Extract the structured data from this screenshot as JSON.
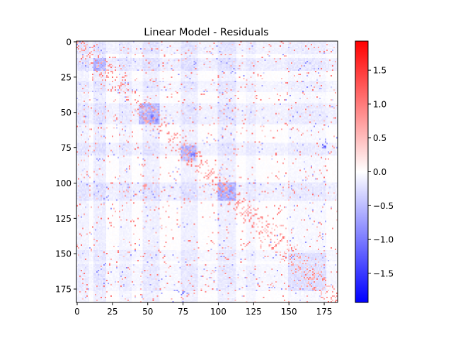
{
  "chart_data": {
    "type": "heatmap",
    "title": "Linear Model - Residuals",
    "xlabel": "",
    "ylabel": "",
    "matrix_size": 185,
    "xlim": [
      0,
      185
    ],
    "ylim": [
      185,
      0
    ],
    "x_ticks": [
      0,
      25,
      50,
      75,
      100,
      125,
      150,
      175
    ],
    "y_ticks": [
      0,
      25,
      50,
      75,
      100,
      125,
      150,
      175
    ],
    "colormap": "bwr",
    "color_range": [
      -1.93,
      1.93
    ],
    "colorbar_ticks": [
      1.5,
      1.0,
      0.5,
      0.0,
      -0.5,
      -1.0,
      -1.5
    ],
    "colorbar_tick_labels": [
      "1.5",
      "1.0",
      "0.5",
      "0.0",
      "−0.5",
      "−1.0",
      "−1.5"
    ],
    "grid": false,
    "value_description": "mostly near-zero residuals; scattered positive (red) entries along and off the diagonal; blocks of negative (blue) residuals near rows/cols 15-20, 45-58, 75-85, 100-110",
    "bands": {
      "rows_negative": [
        [
          0,
          8,
          -0.18
        ],
        [
          12,
          20,
          -0.25
        ],
        [
          28,
          35,
          -0.15
        ],
        [
          44,
          58,
          -0.2
        ],
        [
          72,
          80,
          -0.2
        ],
        [
          100,
          112,
          -0.22
        ],
        [
          148,
          155,
          -0.12
        ],
        [
          158,
          176,
          -0.12
        ]
      ],
      "cols_negative": [
        [
          0,
          8,
          -0.18
        ],
        [
          12,
          20,
          -0.25
        ],
        [
          30,
          38,
          -0.15
        ],
        [
          47,
          58,
          -0.22
        ],
        [
          74,
          85,
          -0.22
        ],
        [
          100,
          112,
          -0.22
        ],
        [
          120,
          126,
          -0.12
        ],
        [
          150,
          176,
          -0.1
        ]
      ],
      "blocks": [
        [
          150,
          176,
          150,
          176,
          -0.12
        ],
        [
          44,
          58,
          44,
          58,
          -0.35
        ],
        [
          100,
          112,
          100,
          112,
          -0.35
        ],
        [
          74,
          84,
          74,
          84,
          -0.35
        ],
        [
          12,
          20,
          12,
          20,
          -0.3
        ]
      ],
      "strong_spots": [
        [
          53,
          53,
          -1.2
        ],
        [
          55,
          57,
          -1.0
        ],
        [
          80,
          82,
          -1.1
        ],
        [
          104,
          106,
          0.9
        ],
        [
          106,
          108,
          -0.9
        ],
        [
          57,
          50,
          0.8
        ],
        [
          102,
          48,
          0.9
        ],
        [
          74,
          175,
          -1.3
        ],
        [
          178,
          75,
          -1.2
        ],
        [
          160,
          158,
          0.8
        ]
      ]
    },
    "scatter": {
      "positive_count": 900,
      "negative_count": 350,
      "near_diagonal_bias": 0.35
    }
  }
}
